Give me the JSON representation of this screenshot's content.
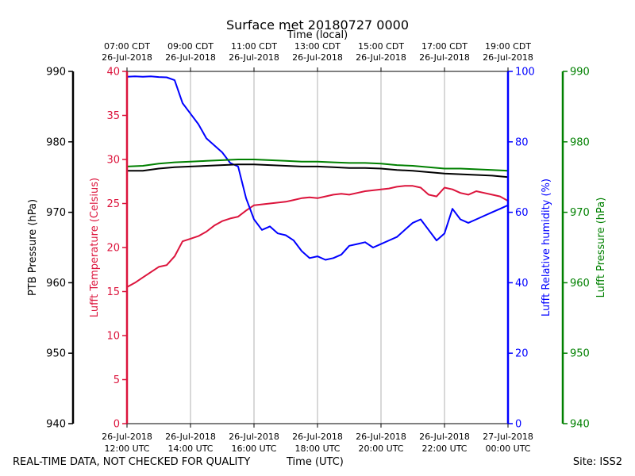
{
  "footer": {
    "left": "REAL-TIME DATA, NOT CHECKED FOR QUALITY",
    "center": "Time (UTC)",
    "right": "Site: ISS2"
  },
  "colors": {
    "temperature": "#dc143c",
    "humidity": "#0000ff",
    "ptb_pressure": "#000000",
    "lufft_pressure": "#008000",
    "grid": "#b0b0b0"
  },
  "chart_data": {
    "type": "line",
    "title": "Surface met 20180727 0000",
    "top_axis_label": "Time (local)",
    "x_range": [
      12,
      24
    ],
    "grid": "vertical",
    "x_ticks_utc": [
      {
        "x": 12,
        "line1": "26-Jul-2018",
        "line2": "12:00 UTC"
      },
      {
        "x": 14,
        "line1": "26-Jul-2018",
        "line2": "14:00 UTC"
      },
      {
        "x": 16,
        "line1": "26-Jul-2018",
        "line2": "16:00 UTC"
      },
      {
        "x": 18,
        "line1": "26-Jul-2018",
        "line2": "18:00 UTC"
      },
      {
        "x": 20,
        "line1": "26-Jul-2018",
        "line2": "20:00 UTC"
      },
      {
        "x": 22,
        "line1": "26-Jul-2018",
        "line2": "22:00 UTC"
      },
      {
        "x": 24,
        "line1": "27-Jul-2018",
        "line2": "00:00 UTC"
      }
    ],
    "x_ticks_local": [
      {
        "x": 12,
        "line1": "07:00 CDT",
        "line2": "26-Jul-2018"
      },
      {
        "x": 14,
        "line1": "09:00 CDT",
        "line2": "26-Jul-2018"
      },
      {
        "x": 16,
        "line1": "11:00 CDT",
        "line2": "26-Jul-2018"
      },
      {
        "x": 18,
        "line1": "13:00 CDT",
        "line2": "26-Jul-2018"
      },
      {
        "x": 20,
        "line1": "15:00 CDT",
        "line2": "26-Jul-2018"
      },
      {
        "x": 22,
        "line1": "17:00 CDT",
        "line2": "26-Jul-2018"
      },
      {
        "x": 24,
        "line1": "19:00 CDT",
        "line2": "26-Jul-2018"
      }
    ],
    "axes": {
      "ptb": {
        "label": "PTB Pressure (hPa)",
        "range": [
          940,
          990
        ],
        "ticks": [
          "940",
          "950",
          "960",
          "970",
          "980",
          "990"
        ]
      },
      "temp": {
        "label": "Lufft Temperature (Celsius)",
        "range": [
          0,
          40
        ],
        "ticks": [
          "0",
          "5",
          "10",
          "15",
          "20",
          "25",
          "30",
          "35",
          "40"
        ]
      },
      "rh": {
        "label": "Lufft Relative humidity (%)",
        "range": [
          0,
          100
        ],
        "ticks": [
          "0",
          "20",
          "40",
          "60",
          "80",
          "100"
        ]
      },
      "lufft_p": {
        "label": "Lufft Pressure (hPa)",
        "range": [
          940,
          990
        ],
        "ticks": [
          "940",
          "950",
          "960",
          "970",
          "980",
          "990"
        ]
      }
    },
    "series": [
      {
        "name": "Lufft Temperature",
        "axis": "temp",
        "color": "#dc143c",
        "x": [
          12.0,
          12.25,
          12.5,
          12.75,
          13.0,
          13.25,
          13.5,
          13.75,
          14.0,
          14.25,
          14.5,
          14.75,
          15.0,
          15.25,
          15.5,
          15.75,
          16.0,
          16.25,
          16.5,
          16.75,
          17.0,
          17.25,
          17.5,
          17.75,
          18.0,
          18.25,
          18.5,
          18.75,
          19.0,
          19.25,
          19.5,
          19.75,
          20.0,
          20.25,
          20.5,
          20.75,
          21.0,
          21.25,
          21.5,
          21.75,
          22.0,
          22.25,
          22.5,
          22.75,
          23.0,
          23.25,
          23.5,
          23.75,
          24.0
        ],
        "values": [
          15.5,
          16.0,
          16.6,
          17.2,
          17.8,
          18.0,
          19.0,
          20.7,
          21.0,
          21.3,
          21.8,
          22.5,
          23.0,
          23.3,
          23.5,
          24.2,
          24.8,
          24.9,
          25.0,
          25.1,
          25.2,
          25.4,
          25.6,
          25.7,
          25.6,
          25.8,
          26.0,
          26.1,
          26.0,
          26.2,
          26.4,
          26.5,
          26.6,
          26.7,
          26.9,
          27.0,
          27.0,
          26.8,
          26.0,
          25.8,
          26.8,
          26.6,
          26.2,
          26.0,
          26.4,
          26.2,
          26.0,
          25.8,
          25.3
        ]
      },
      {
        "name": "Lufft Relative humidity",
        "axis": "rh",
        "color": "#0000ff",
        "x": [
          12.0,
          12.25,
          12.5,
          12.75,
          13.0,
          13.25,
          13.5,
          13.75,
          14.0,
          14.25,
          14.5,
          14.75,
          15.0,
          15.25,
          15.5,
          15.75,
          16.0,
          16.25,
          16.5,
          16.75,
          17.0,
          17.25,
          17.5,
          17.75,
          18.0,
          18.25,
          18.5,
          18.75,
          19.0,
          19.25,
          19.5,
          19.75,
          20.0,
          20.25,
          20.5,
          20.75,
          21.0,
          21.25,
          21.5,
          21.75,
          22.0,
          22.25,
          22.5,
          22.75,
          23.0,
          23.25,
          23.5,
          23.75,
          24.0
        ],
        "values": [
          98.5,
          98.6,
          98.5,
          98.6,
          98.4,
          98.3,
          97.5,
          91.0,
          88.0,
          85.0,
          81.0,
          79.0,
          77.0,
          74.0,
          73.0,
          64.0,
          58.0,
          55.0,
          56.0,
          54.0,
          53.5,
          52.0,
          49.0,
          47.0,
          47.5,
          46.5,
          47.0,
          48.0,
          50.5,
          51.0,
          51.5,
          50.0,
          51.0,
          52.0,
          53.0,
          55.0,
          57.0,
          58.0,
          55.0,
          52.0,
          54.0,
          61.0,
          58.0,
          57.0,
          58.0,
          59.0,
          60.0,
          61.0,
          62.0
        ]
      },
      {
        "name": "PTB Pressure",
        "axis": "ptb",
        "color": "#000000",
        "x": [
          12.0,
          12.5,
          13.0,
          13.5,
          14.0,
          14.5,
          15.0,
          15.5,
          16.0,
          16.5,
          17.0,
          17.5,
          18.0,
          18.5,
          19.0,
          19.5,
          20.0,
          20.5,
          21.0,
          21.5,
          22.0,
          22.5,
          23.0,
          23.5,
          24.0
        ],
        "values": [
          975.9,
          975.9,
          976.2,
          976.4,
          976.5,
          976.6,
          976.7,
          976.8,
          976.8,
          976.7,
          976.6,
          976.5,
          976.5,
          976.4,
          976.3,
          976.3,
          976.2,
          976.0,
          975.9,
          975.7,
          975.5,
          975.4,
          975.3,
          975.2,
          975.0
        ]
      },
      {
        "name": "Lufft Pressure",
        "axis": "lufft_p",
        "color": "#008000",
        "x": [
          12.0,
          12.5,
          13.0,
          13.5,
          14.0,
          14.5,
          15.0,
          15.5,
          16.0,
          16.5,
          17.0,
          17.5,
          18.0,
          18.5,
          19.0,
          19.5,
          20.0,
          20.5,
          21.0,
          21.5,
          22.0,
          22.5,
          23.0,
          23.5,
          24.0
        ],
        "values": [
          976.5,
          976.6,
          976.9,
          977.1,
          977.2,
          977.3,
          977.4,
          977.5,
          977.5,
          977.4,
          977.3,
          977.2,
          977.2,
          977.1,
          977.0,
          977.0,
          976.9,
          976.7,
          976.6,
          976.4,
          976.2,
          976.2,
          976.1,
          976.0,
          975.9
        ]
      }
    ]
  }
}
